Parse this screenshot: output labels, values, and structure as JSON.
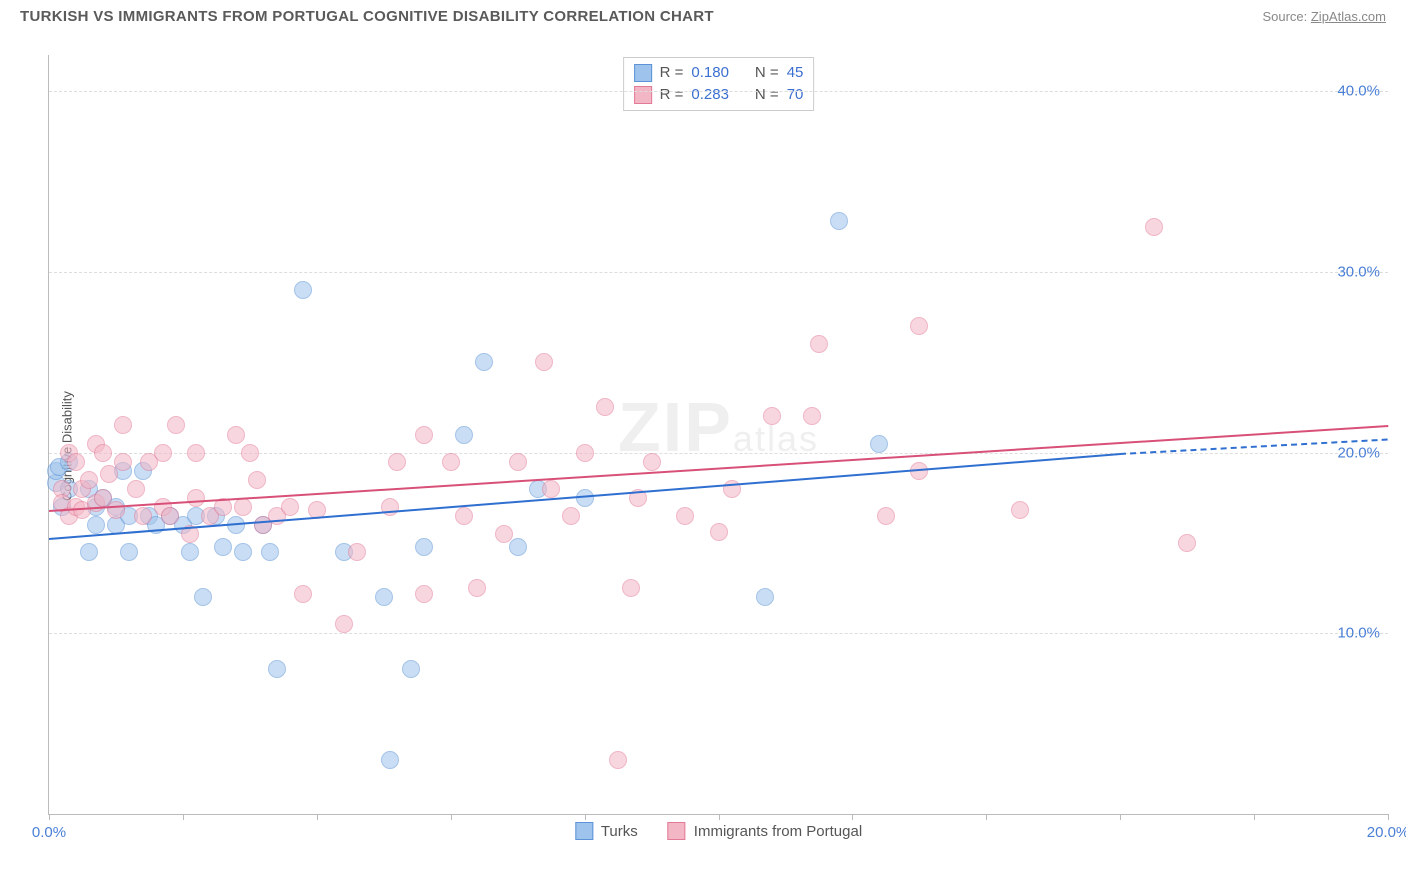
{
  "title": "TURKISH VS IMMIGRANTS FROM PORTUGAL COGNITIVE DISABILITY CORRELATION CHART",
  "source_prefix": "Source: ",
  "source_name": "ZipAtlas.com",
  "ylabel": "Cognitive Disability",
  "watermark_main": "ZIP",
  "watermark_sub": "atlas",
  "chart": {
    "type": "scatter",
    "xlim": [
      0,
      20
    ],
    "ylim": [
      0,
      42
    ],
    "yticks": [
      10,
      20,
      30,
      40
    ],
    "ytick_labels": [
      "10.0%",
      "20.0%",
      "30.0%",
      "40.0%"
    ],
    "xticks": [
      0,
      2,
      4,
      6,
      8,
      10,
      12,
      14,
      16,
      18,
      20
    ],
    "xtick_labels": {
      "0": "0.0%",
      "20": "20.0%"
    },
    "grid_color": "#dddddd",
    "axis_color": "#bbbbbb",
    "background_color": "#ffffff",
    "label_color": "#4a7fd6",
    "point_radius": 9,
    "point_opacity": 0.55,
    "series": [
      {
        "key": "turks",
        "name": "Turks",
        "fill": "#9ec3ec",
        "stroke": "#5b93d6",
        "trend_color": "#2f6fd0",
        "legend": {
          "R_label": "R =",
          "R": "0.180",
          "N_label": "N =",
          "N": "45"
        },
        "trend": {
          "x1": 0,
          "y1": 15.3,
          "x2": 16,
          "y2": 20.0,
          "dash_after_x": 16,
          "x2_dash": 20,
          "y2_dash": 20.8
        },
        "points": [
          [
            0.1,
            18.3
          ],
          [
            0.1,
            19.0
          ],
          [
            0.15,
            19.2
          ],
          [
            0.2,
            17.0
          ],
          [
            0.3,
            18.0
          ],
          [
            0.3,
            19.5
          ],
          [
            0.6,
            14.5
          ],
          [
            0.6,
            18.0
          ],
          [
            0.7,
            17.0
          ],
          [
            0.7,
            16.0
          ],
          [
            0.8,
            17.5
          ],
          [
            1.0,
            17.0
          ],
          [
            1.0,
            16.0
          ],
          [
            1.1,
            19.0
          ],
          [
            1.2,
            14.5
          ],
          [
            1.2,
            16.5
          ],
          [
            1.4,
            19.0
          ],
          [
            1.5,
            16.5
          ],
          [
            1.6,
            16.0
          ],
          [
            1.8,
            16.5
          ],
          [
            2.0,
            16.0
          ],
          [
            2.1,
            14.5
          ],
          [
            2.2,
            16.5
          ],
          [
            2.3,
            12.0
          ],
          [
            2.5,
            16.5
          ],
          [
            2.6,
            14.8
          ],
          [
            2.8,
            16.0
          ],
          [
            2.9,
            14.5
          ],
          [
            3.2,
            16.0
          ],
          [
            3.3,
            14.5
          ],
          [
            3.4,
            8.0
          ],
          [
            3.8,
            29.0
          ],
          [
            4.4,
            14.5
          ],
          [
            5.0,
            12.0
          ],
          [
            5.1,
            3.0
          ],
          [
            5.4,
            8.0
          ],
          [
            5.6,
            14.8
          ],
          [
            6.2,
            21.0
          ],
          [
            6.5,
            25.0
          ],
          [
            7.0,
            14.8
          ],
          [
            7.3,
            18.0
          ],
          [
            8.0,
            17.5
          ],
          [
            10.7,
            12.0
          ],
          [
            11.8,
            32.8
          ],
          [
            12.4,
            20.5
          ]
        ]
      },
      {
        "key": "portugal",
        "name": "Immigrants from Portugal",
        "fill": "#f3b6c5",
        "stroke": "#e27a97",
        "trend_color": "#d85078",
        "legend": {
          "R_label": "R =",
          "R": "0.283",
          "N_label": "N =",
          "N": "70"
        },
        "trend": {
          "x1": 0,
          "y1": 16.8,
          "x2": 20,
          "y2": 21.5
        },
        "points": [
          [
            0.2,
            18.0
          ],
          [
            0.2,
            17.2
          ],
          [
            0.3,
            20.0
          ],
          [
            0.3,
            16.5
          ],
          [
            0.4,
            17.0
          ],
          [
            0.4,
            19.5
          ],
          [
            0.5,
            18.0
          ],
          [
            0.5,
            16.8
          ],
          [
            0.6,
            18.5
          ],
          [
            0.7,
            20.5
          ],
          [
            0.7,
            17.2
          ],
          [
            0.8,
            20.0
          ],
          [
            0.8,
            17.5
          ],
          [
            0.9,
            18.8
          ],
          [
            1.0,
            16.8
          ],
          [
            1.1,
            19.5
          ],
          [
            1.1,
            21.5
          ],
          [
            1.3,
            18.0
          ],
          [
            1.4,
            16.5
          ],
          [
            1.5,
            19.5
          ],
          [
            1.7,
            20.0
          ],
          [
            1.7,
            17.0
          ],
          [
            1.8,
            16.5
          ],
          [
            1.9,
            21.5
          ],
          [
            2.1,
            15.5
          ],
          [
            2.2,
            20.0
          ],
          [
            2.2,
            17.5
          ],
          [
            2.4,
            16.5
          ],
          [
            2.6,
            17.0
          ],
          [
            2.8,
            21.0
          ],
          [
            2.9,
            17.0
          ],
          [
            3.0,
            20.0
          ],
          [
            3.1,
            18.5
          ],
          [
            3.2,
            16.0
          ],
          [
            3.4,
            16.5
          ],
          [
            3.6,
            17.0
          ],
          [
            3.8,
            12.2
          ],
          [
            4.0,
            16.8
          ],
          [
            4.4,
            10.5
          ],
          [
            4.6,
            14.5
          ],
          [
            5.1,
            17.0
          ],
          [
            5.2,
            19.5
          ],
          [
            5.6,
            21.0
          ],
          [
            5.6,
            12.2
          ],
          [
            6.0,
            19.5
          ],
          [
            6.2,
            16.5
          ],
          [
            6.4,
            12.5
          ],
          [
            7.0,
            19.5
          ],
          [
            7.4,
            25.0
          ],
          [
            7.5,
            18.0
          ],
          [
            7.8,
            16.5
          ],
          [
            8.0,
            20.0
          ],
          [
            8.3,
            22.5
          ],
          [
            8.5,
            3.0
          ],
          [
            8.7,
            12.5
          ],
          [
            8.8,
            17.5
          ],
          [
            9.0,
            19.5
          ],
          [
            9.5,
            16.5
          ],
          [
            10.2,
            18.0
          ],
          [
            10.8,
            22.0
          ],
          [
            11.4,
            22.0
          ],
          [
            11.5,
            26.0
          ],
          [
            12.5,
            16.5
          ],
          [
            13.0,
            27.0
          ],
          [
            13.0,
            19.0
          ],
          [
            14.5,
            16.8
          ],
          [
            16.5,
            32.5
          ],
          [
            17.0,
            15.0
          ],
          [
            10.0,
            15.6
          ],
          [
            6.8,
            15.5
          ]
        ]
      }
    ]
  }
}
